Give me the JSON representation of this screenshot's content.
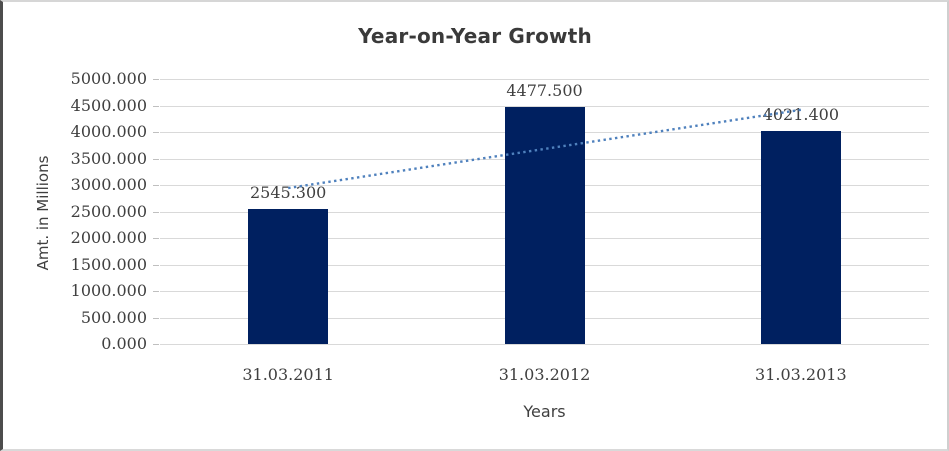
{
  "chart_data": {
    "type": "bar",
    "title": "Year-on-Year Growth",
    "xlabel": "Years",
    "ylabel": "Amt. in Millions",
    "categories": [
      "31.03.2011",
      "31.03.2012",
      "31.03.2013"
    ],
    "values": [
      2545.3,
      4477.5,
      4021.4
    ],
    "data_labels": [
      "2545.300",
      "4477.500",
      "4021.400"
    ],
    "ylim": [
      0,
      5000
    ],
    "ytick_step": 500,
    "ytick_labels": [
      "0.000",
      "500.000",
      "1000.000",
      "1500.000",
      "2000.000",
      "2500.000",
      "3000.000",
      "3500.000",
      "4000.000",
      "4500.000",
      "5000.000"
    ],
    "grid": true,
    "legend": "none",
    "bar_color": "#002060",
    "gridline_color": "#d9d9d9",
    "text_color": "#404040",
    "trendline": {
      "type": "linear",
      "style": "dotted",
      "color": "#4f81bd"
    }
  }
}
